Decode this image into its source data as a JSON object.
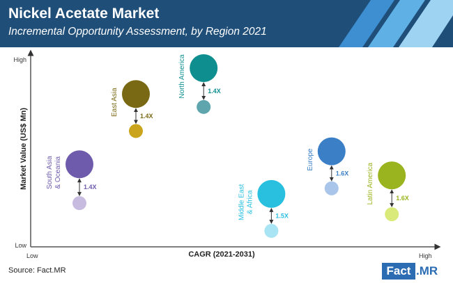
{
  "header": {
    "title": "Nickel Acetate Market",
    "subtitle": "Incremental Opportunity Assessment, by Region 2021",
    "bg_color": "#1f4e79",
    "stripe_colors": [
      "#3d8fd1",
      "#5fb0e5",
      "#9fd3f2"
    ]
  },
  "source": "Source: Fact.MR",
  "logo": {
    "part1": "Fact",
    "part2": ".MR",
    "color": "#2b6cb3"
  },
  "chart_data": {
    "type": "scatter",
    "xlabel": "CAGR (2021-2031)",
    "ylabel": "Market Value (US$ Mn)",
    "x_ticks": {
      "low": "Low",
      "high": "High"
    },
    "y_ticks": {
      "low": "Low",
      "high": "High"
    },
    "xlim": [
      0,
      100
    ],
    "ylim": [
      0,
      100
    ],
    "grid": false,
    "series": [
      {
        "name": "South Asia & Oceania",
        "label_lines": [
          "South Asia",
          "& Oceania"
        ],
        "color": "#6f5bab",
        "x": 10,
        "y_2031": 42,
        "y_2021": 21,
        "multiplier": "1.4X"
      },
      {
        "name": "East Asia",
        "label_lines": [
          "East Asia"
        ],
        "color": "#7a6914",
        "x": 25,
        "y_2031": 80,
        "y_2021": 60,
        "multiplier": "1.4X"
      },
      {
        "name": "North America",
        "label_lines": [
          "North America"
        ],
        "color": "#0e8e8f",
        "x": 43,
        "y_2031": 94,
        "y_2021": 73,
        "multiplier": "1.4X"
      },
      {
        "name": "Middle East & Africa",
        "label_lines": [
          "Middle East",
          "& Africa"
        ],
        "color": "#29c0e0",
        "x": 61,
        "y_2031": 26,
        "y_2021": 6,
        "multiplier": "1.5X"
      },
      {
        "name": "Europe",
        "label_lines": [
          "Europe"
        ],
        "color": "#3b7fc6",
        "x": 77,
        "y_2031": 49,
        "y_2021": 29,
        "multiplier": "1.6X"
      },
      {
        "name": "Latin America",
        "label_lines": [
          "Latin America"
        ],
        "color": "#9ab41f",
        "x": 93,
        "y_2031": 36,
        "y_2021": 15,
        "multiplier": "1.6X"
      }
    ],
    "small_bubble_colors": [
      "#c8bbe0",
      "#c9a41c",
      "#5ea5ad",
      "#a8e4f3",
      "#a9c6ea",
      "#d9ea7a"
    ]
  }
}
